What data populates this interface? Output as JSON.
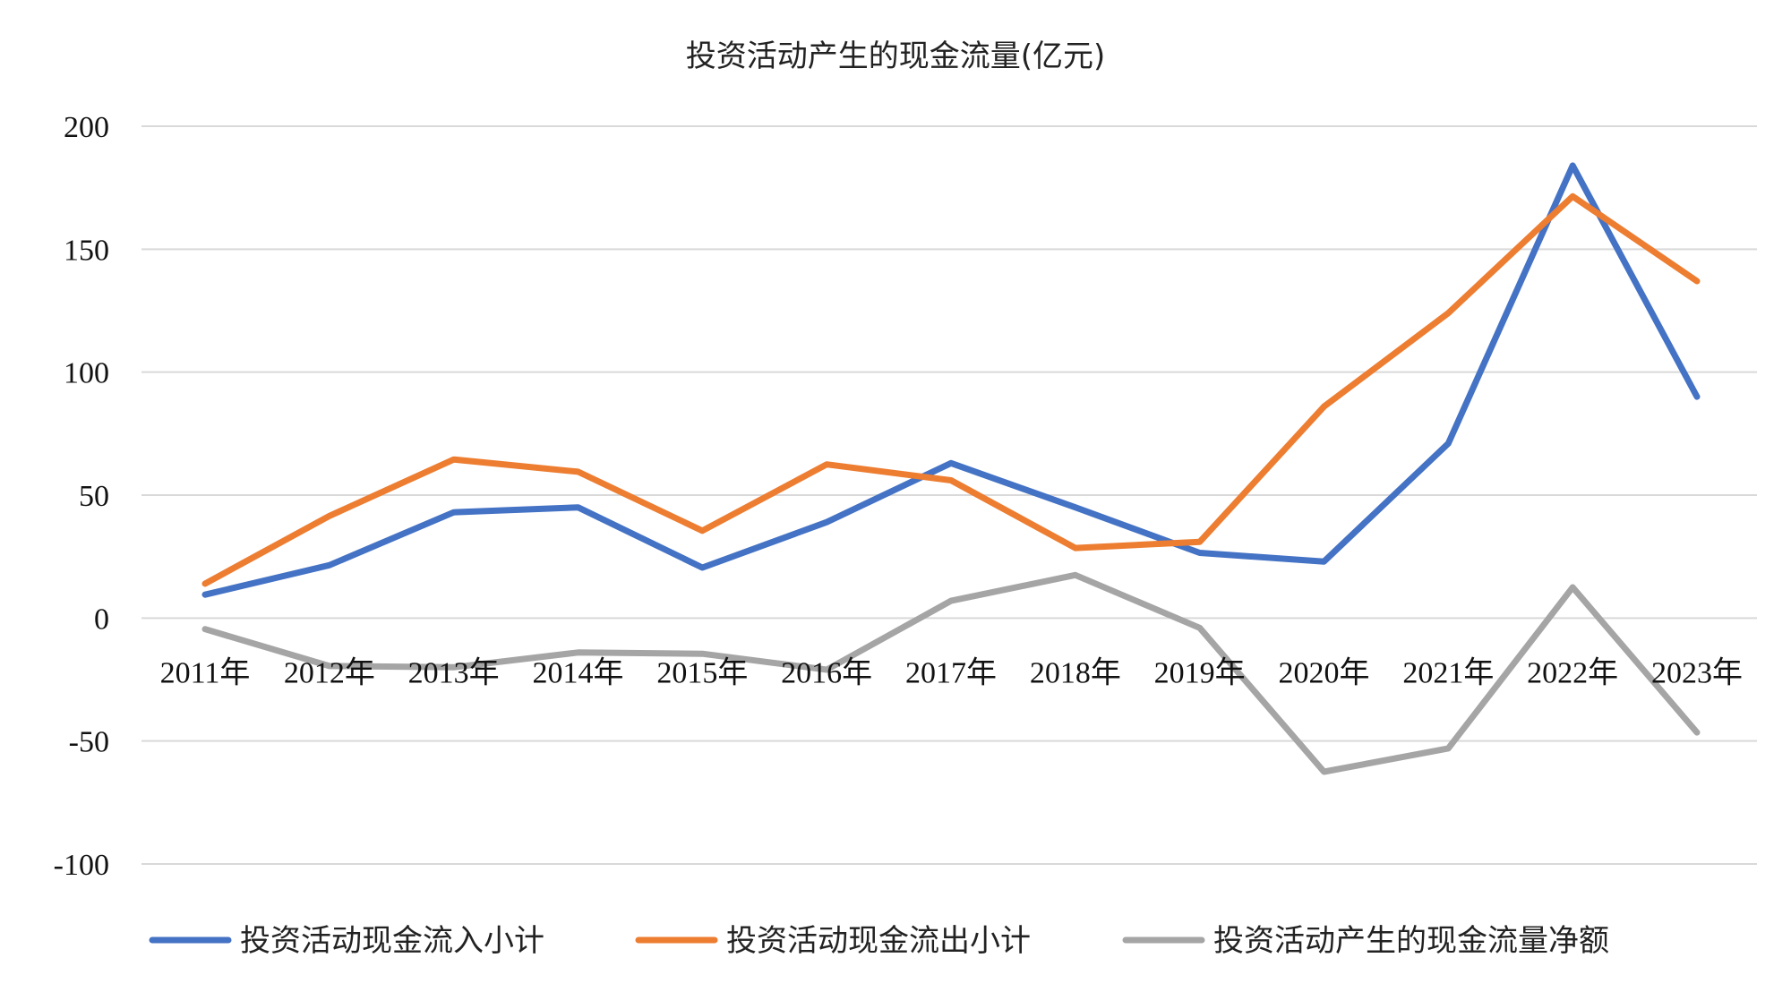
{
  "chart_data": {
    "type": "line",
    "title": "投资活动产生的现金流量(亿元)",
    "xlabel": "",
    "ylabel": "",
    "categories": [
      "2011年",
      "2012年",
      "2013年",
      "2014年",
      "2015年",
      "2016年",
      "2017年",
      "2018年",
      "2019年",
      "2020年",
      "2021年",
      "2022年",
      "2023年"
    ],
    "ylim": [
      -100,
      200
    ],
    "yticks": [
      200,
      150,
      100,
      50,
      0,
      -50,
      -100
    ],
    "ytick_labels": [
      "200",
      "150",
      "100",
      "50",
      "0",
      "-50",
      "-100"
    ],
    "grid": true,
    "legend_position": "bottom",
    "series": [
      {
        "name": "投资活动现金流入小计",
        "color": "#4472C4",
        "values": [
          9.5,
          21.5,
          43,
          45,
          20.5,
          39,
          63,
          45,
          26.5,
          23,
          71,
          184,
          90
        ]
      },
      {
        "name": "投资活动现金流出小计",
        "color": "#ED7D31",
        "values": [
          14,
          41.5,
          64.5,
          59.5,
          35.5,
          62.5,
          56,
          28.5,
          31,
          86,
          124,
          171.5,
          137
        ]
      },
      {
        "name": "投资活动产生的现金流量净额",
        "color": "#A5A5A5",
        "values": [
          -4.5,
          -19.5,
          -20,
          -14,
          -14.5,
          -21,
          7,
          17.5,
          -4,
          -62.5,
          -53,
          12.5,
          -46.5
        ]
      }
    ]
  }
}
